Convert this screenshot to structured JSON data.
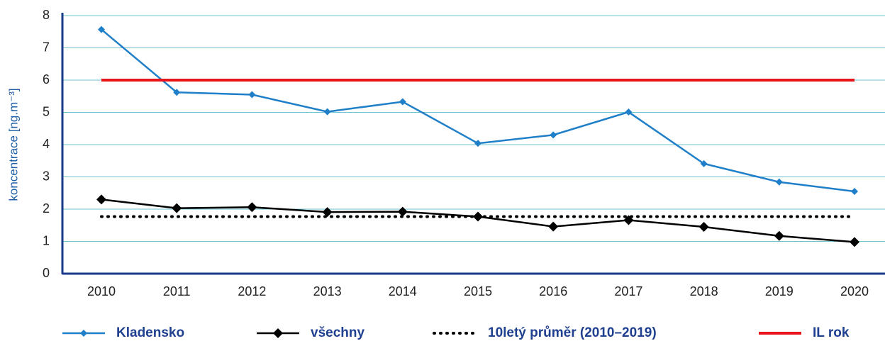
{
  "chart_data": {
    "type": "line",
    "y_label": "koncentrace [ng.m⁻³]",
    "categories": [
      "2010",
      "2011",
      "2012",
      "2013",
      "2014",
      "2015",
      "2016",
      "2017",
      "2018",
      "2019",
      "2020"
    ],
    "series": [
      {
        "name": "Kladensko",
        "color": "#1f7fc8",
        "marker": "diamond",
        "dash": false,
        "values": [
          7.57,
          5.62,
          5.55,
          5.02,
          5.33,
          4.04,
          4.3,
          5.01,
          3.41,
          2.84,
          2.55
        ]
      },
      {
        "name": "všechny",
        "color": "#000000",
        "marker": "diamond",
        "dash": false,
        "values": [
          2.3,
          2.03,
          2.06,
          1.91,
          1.92,
          1.77,
          1.46,
          1.66,
          1.45,
          1.17,
          0.98
        ]
      },
      {
        "name": "10letý průměr (2010–2019)",
        "color": "#000000",
        "marker": null,
        "dash": true,
        "values": [
          1.77,
          1.77,
          1.77,
          1.77,
          1.77,
          1.77,
          1.77,
          1.77,
          1.77,
          1.77,
          1.77
        ]
      },
      {
        "name": "IL rok",
        "color": "#e8141c",
        "marker": null,
        "dash": false,
        "values": [
          6,
          6,
          6,
          6,
          6,
          6,
          6,
          6,
          6,
          6,
          6
        ]
      }
    ],
    "ylim": [
      0,
      8
    ],
    "yticks": [
      0,
      1,
      2,
      3,
      4,
      5,
      6,
      7,
      8
    ],
    "grid": true
  }
}
